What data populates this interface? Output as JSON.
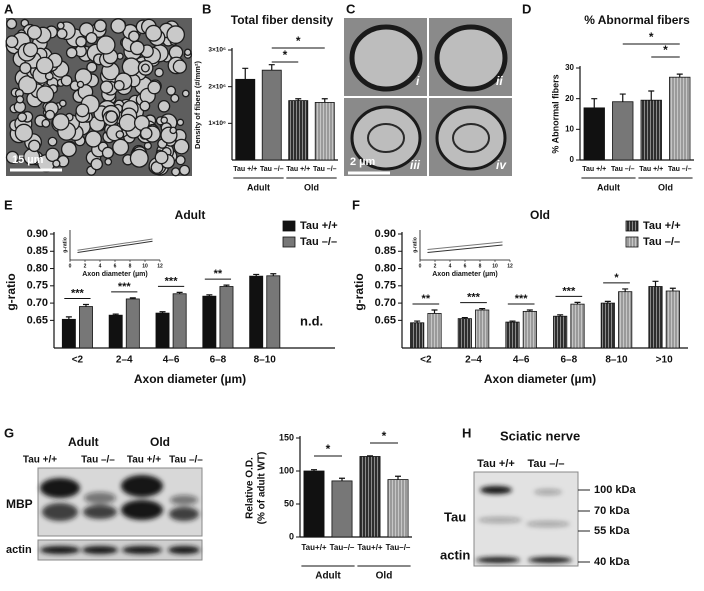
{
  "panel_labels": [
    "A",
    "B",
    "C",
    "D",
    "E",
    "F",
    "G",
    "H"
  ],
  "micrograph_a": {
    "scale_bar": "15 µm"
  },
  "micrograph_c": {
    "labels": [
      "i",
      "ii",
      "iii",
      "iv"
    ],
    "scale_bar": "2 µm"
  },
  "blot_g": {
    "groups": [
      "Adult",
      "Old"
    ],
    "lanes": [
      "Tau +/+",
      "Tau –/–",
      "Tau +/+",
      "Tau –/–"
    ],
    "rows": [
      "MBP",
      "actin"
    ]
  },
  "blot_h": {
    "title": "Sciatic nerve",
    "lanes": [
      "Tau +/+",
      "Tau –/–"
    ],
    "rows": [
      "Tau",
      "actin"
    ],
    "markers": [
      "100 kDa",
      "70 kDa",
      "55 kDa",
      "40 kDa"
    ]
  },
  "chart_data": [
    {
      "type": "bar",
      "title": "Total fiber density",
      "y_label": [
        "Density of fibers (#/mm²)"
      ],
      "categories": [
        "Tau +/+",
        "Tau –/–",
        "Tau +/+",
        "Tau –/–"
      ],
      "groups": [
        "Adult",
        "Old"
      ],
      "values": [
        2200000,
        2450000,
        1620000,
        1570000
      ],
      "errors": [
        300000,
        150000,
        50000,
        100000
      ],
      "colors": [
        "#111111",
        "#777777",
        "#2e2e2e",
        "#9a9a9a"
      ],
      "hatched": [
        false,
        false,
        true,
        true
      ],
      "ylim": [
        0,
        3000000
      ],
      "yticks": [
        {
          "value": 1000000,
          "label": "1×10⁶"
        },
        {
          "value": 2000000,
          "label": "2×10⁶"
        },
        {
          "value": 3000000,
          "label": "3×10⁶"
        }
      ],
      "significance": [
        {
          "label": "*",
          "between": [
            1,
            2
          ]
        },
        {
          "label": "*",
          "between": [
            1,
            3
          ]
        }
      ]
    },
    {
      "type": "bar",
      "title": "% Abnormal fibers",
      "y_label": [
        "% Abnormal fibers"
      ],
      "categories": [
        "Tau +/+",
        "Tau –/–",
        "Tau +/+",
        "Tau –/–"
      ],
      "groups": [
        "Adult",
        "Old"
      ],
      "values": [
        17,
        19,
        19.5,
        27
      ],
      "errors": [
        3,
        2.5,
        3,
        1
      ],
      "colors": [
        "#111111",
        "#777777",
        "#2e2e2e",
        "#9a9a9a"
      ],
      "hatched": [
        false,
        false,
        true,
        true
      ],
      "ylim": [
        0,
        30
      ],
      "yticks": [
        0,
        10,
        20,
        30
      ],
      "significance": [
        {
          "label": "*",
          "between": [
            2,
            3
          ]
        },
        {
          "label": "*",
          "between": [
            1,
            3
          ]
        }
      ]
    },
    {
      "type": "grouped_bar",
      "title": "Adult",
      "y_label": [
        "g-ratio"
      ],
      "x_label": "Axon diameter (µm)",
      "categories": [
        "<2",
        "2–4",
        "4–6",
        "6–8",
        "8–10",
        null
      ],
      "series": [
        {
          "name": "Tau +/+",
          "color": "#111111",
          "hatched": false,
          "values": [
            0.653,
            0.665,
            0.671,
            0.72,
            0.778,
            null
          ],
          "errors": [
            0.007,
            0.003,
            0.004,
            0.004,
            0.005,
            null
          ]
        },
        {
          "name": "Tau –/–",
          "color": "#777777",
          "hatched": false,
          "values": [
            0.69,
            0.712,
            0.727,
            0.748,
            0.779,
            null
          ],
          "errors": [
            0.006,
            0.003,
            0.004,
            0.004,
            0.006,
            null
          ]
        }
      ],
      "significance": [
        "***",
        "***",
        "***",
        "**",
        null,
        null
      ],
      "annotation": "n.d.",
      "ylim": [
        0.57,
        0.9
      ],
      "yticks": [
        0.65,
        {
          "value": 0.7,
          "label": "0.70"
        },
        0.75,
        {
          "value": 0.8,
          "label": "0.80"
        },
        0.85,
        {
          "value": 0.9,
          "label": "0.90"
        }
      ],
      "inset": {
        "type": "line",
        "x_label": "Axon diameter (µm)",
        "y_label": "g-ratio",
        "xlim": [
          0,
          12
        ],
        "xticks": [
          0,
          2,
          4,
          6,
          8,
          10,
          12
        ],
        "ylim": [
          0.5,
          0.9
        ],
        "series": [
          {
            "color": "#333333",
            "x": [
              1,
              11
            ],
            "values": [
              0.6,
              0.75
            ]
          },
          {
            "color": "#777777",
            "x": [
              1,
              11
            ],
            "values": [
              0.63,
              0.78
            ]
          }
        ]
      }
    },
    {
      "type": "grouped_bar",
      "title": "Old",
      "y_label": [
        "g-ratio"
      ],
      "x_label": "Axon diameter (µm)",
      "categories": [
        "<2",
        "2–4",
        "4–6",
        "6–8",
        "8–10",
        ">10"
      ],
      "series": [
        {
          "name": "Tau +/+",
          "color": "#2e2e2e",
          "hatched": true,
          "values": [
            0.643,
            0.655,
            0.645,
            0.662,
            0.7,
            0.748
          ],
          "errors": [
            0.005,
            0.003,
            0.003,
            0.004,
            0.005,
            0.015
          ]
        },
        {
          "name": "Tau –/–",
          "color": "#9a9a9a",
          "hatched": true,
          "values": [
            0.67,
            0.68,
            0.676,
            0.697,
            0.733,
            0.735
          ],
          "errors": [
            0.01,
            0.004,
            0.004,
            0.005,
            0.008,
            0.008
          ]
        }
      ],
      "significance": [
        "**",
        "***",
        "***",
        "***",
        "*",
        null
      ],
      "ylim": [
        0.57,
        0.9
      ],
      "yticks": [
        0.65,
        {
          "value": 0.7,
          "label": "0.70"
        },
        0.75,
        {
          "value": 0.8,
          "label": "0.80"
        },
        0.85,
        {
          "value": 0.9,
          "label": "0.90"
        }
      ],
      "inset": {
        "type": "line",
        "x_label": "Axon diameter (µm)",
        "y_label": "g-ratio",
        "xlim": [
          0,
          12
        ],
        "xticks": [
          0,
          2,
          4,
          6,
          8,
          10,
          12
        ],
        "ylim": [
          0.5,
          0.9
        ],
        "series": [
          {
            "color": "#333333",
            "x": [
              1,
              11
            ],
            "values": [
              0.6,
              0.7
            ]
          },
          {
            "color": "#777777",
            "x": [
              1,
              11
            ],
            "values": [
              0.64,
              0.74
            ]
          }
        ]
      }
    },
    {
      "type": "bar",
      "y_label": [
        "Relative O.D.",
        "(% of adult WT)"
      ],
      "categories": [
        "Tau+/+",
        "Tau–/–",
        "Tau+/+",
        "Tau–/–"
      ],
      "groups": [
        "Adult",
        "Old"
      ],
      "values": [
        100,
        85,
        122,
        87
      ],
      "errors": [
        2,
        4,
        1,
        5
      ],
      "colors": [
        "#111111",
        "#777777",
        "#2e2e2e",
        "#9a9a9a"
      ],
      "hatched": [
        false,
        false,
        true,
        true
      ],
      "ylim": [
        0,
        150
      ],
      "yticks": [
        0,
        50,
        100,
        150
      ],
      "significance": [
        {
          "label": "*",
          "between": [
            0,
            1
          ]
        },
        {
          "label": "*",
          "between": [
            2,
            3
          ]
        }
      ]
    }
  ]
}
